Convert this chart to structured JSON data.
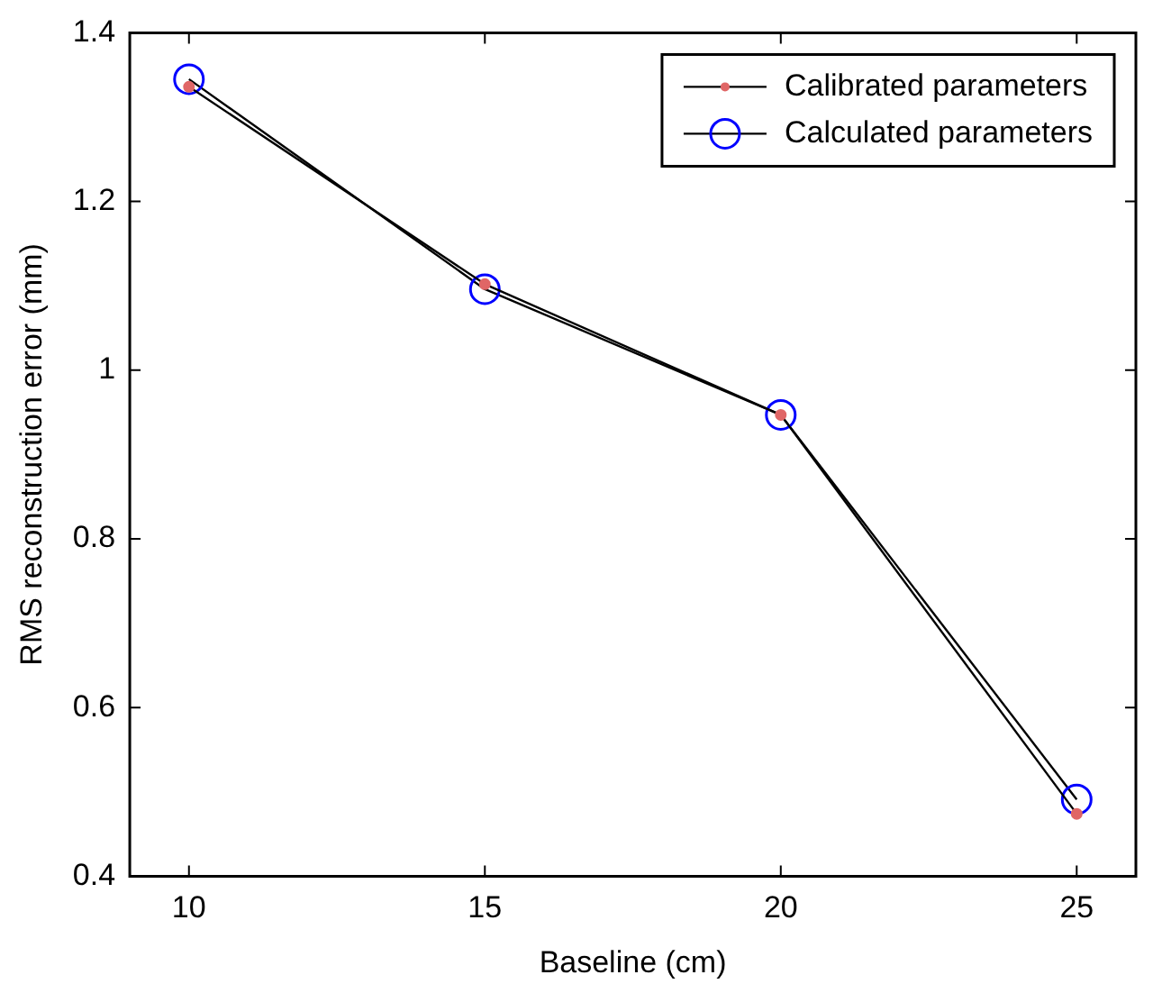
{
  "chart_data": {
    "type": "line",
    "xlabel": "Baseline (cm)",
    "ylabel": "RMS reconstruction error (mm)",
    "x": [
      10,
      15,
      20,
      25
    ],
    "series": [
      {
        "name": "Calibrated parameters",
        "color": "#e06666",
        "values": [
          1.336,
          1.102,
          0.947,
          0.474
        ]
      },
      {
        "name": "Calculated parameters",
        "color": "#0000ff",
        "values": [
          1.345,
          1.096,
          0.947,
          0.491
        ]
      }
    ],
    "xlim": [
      9,
      26
    ],
    "xticks": [
      10,
      15,
      20,
      25
    ],
    "ylim": [
      0.4,
      1.4
    ],
    "yticks": [
      0.4,
      0.6,
      0.8,
      1,
      1.2,
      1.4
    ],
    "grid": false,
    "legend": "top right",
    "marker": "circle",
    "line_style": "solid"
  }
}
